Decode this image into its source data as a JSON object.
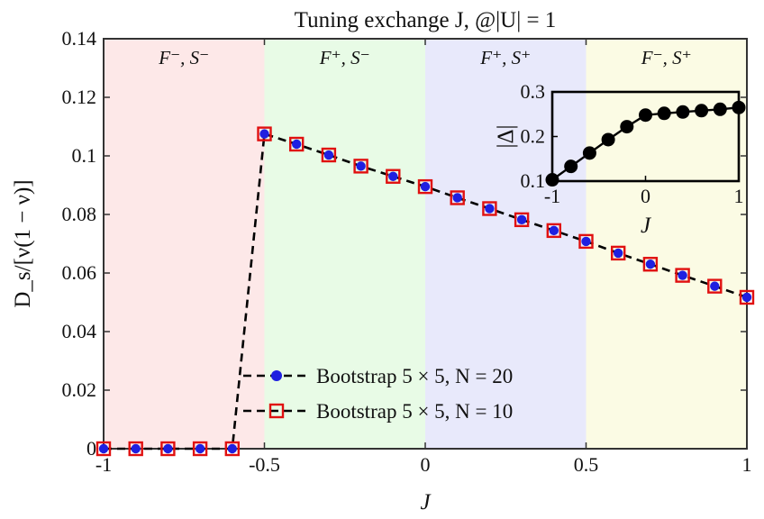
{
  "chart_data": [
    {
      "type": "line",
      "title": "Tuning exchange J, @|U| = 1",
      "xlabel": "J",
      "ylabel": "D_s/[ν(1 − ν)]",
      "xlim": [
        -1,
        1
      ],
      "ylim": [
        0,
        0.14
      ],
      "xticks": [
        "-1",
        "-0.5",
        "0",
        "0.5",
        "1"
      ],
      "yticks": [
        "0",
        "0.02",
        "0.04",
        "0.06",
        "0.08",
        "0.1",
        "0.12",
        "0.14"
      ],
      "grid": false,
      "legend_position": "bottom-center",
      "regions": [
        {
          "from": -1,
          "to": -0.5,
          "label": "F⁻, S⁻",
          "color": "#fde8e8"
        },
        {
          "from": -0.5,
          "to": 0,
          "label": "F⁺, S⁻",
          "color": "#e8fbe6"
        },
        {
          "from": 0,
          "to": 0.5,
          "label": "F⁺, S⁺",
          "color": "#e8e9fb"
        },
        {
          "from": 0.5,
          "to": 1,
          "label": "F⁻, S⁺",
          "color": "#fbfbe4"
        }
      ],
      "x": [
        -1,
        -0.9,
        -0.8,
        -0.7,
        -0.6,
        -0.5,
        -0.4,
        -0.3,
        -0.2,
        -0.1,
        0,
        0.1,
        0.2,
        0.3,
        0.4,
        0.5,
        0.6,
        0.7,
        0.8,
        0.9,
        1
      ],
      "series": [
        {
          "name": "Bootstrap 5 × 5, N = 20",
          "marker": "filled-circle",
          "color": "#1f1fe0",
          "values": [
            0,
            0,
            0,
            0,
            0,
            0.1075,
            0.104,
            0.1003,
            0.0965,
            0.093,
            0.0895,
            0.0857,
            0.082,
            0.0782,
            0.0745,
            0.0708,
            0.0668,
            0.063,
            0.0592,
            0.0555,
            0.0517
          ]
        },
        {
          "name": "Bootstrap 5 × 5, N = 10",
          "marker": "open-square",
          "color": "#e01010",
          "values": [
            0,
            0,
            0,
            0,
            0,
            0.1075,
            0.104,
            0.1003,
            0.0965,
            0.093,
            0.0895,
            0.0857,
            0.082,
            0.0782,
            0.0745,
            0.0708,
            0.0668,
            0.063,
            0.0592,
            0.0555,
            0.0517
          ]
        }
      ]
    },
    {
      "type": "line",
      "title": "",
      "xlabel": "J",
      "ylabel": "|Δ|",
      "xlim": [
        -1,
        1
      ],
      "ylim": [
        0.1,
        0.3
      ],
      "xticks": [
        "-1",
        "0",
        "1"
      ],
      "yticks": [
        "0.1",
        "0.2",
        "0.3"
      ],
      "series": [
        {
          "name": "",
          "marker": "filled-circle",
          "color": "#000000",
          "x": [
            -1,
            -0.8,
            -0.6,
            -0.4,
            -0.2,
            0,
            0.2,
            0.4,
            0.6,
            0.8,
            1
          ],
          "values": [
            0.103,
            0.133,
            0.163,
            0.193,
            0.222,
            0.248,
            0.252,
            0.255,
            0.258,
            0.261,
            0.265
          ]
        }
      ]
    }
  ]
}
